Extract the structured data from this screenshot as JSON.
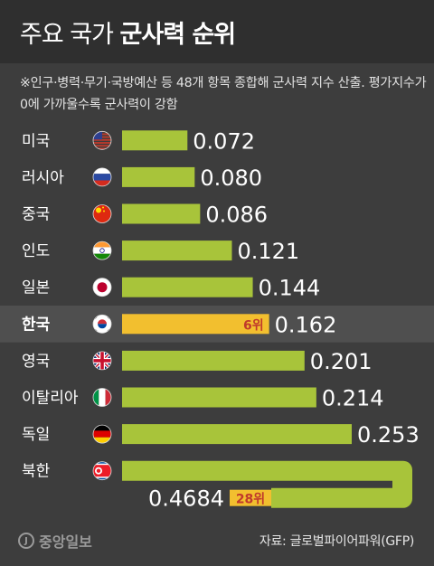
{
  "title": {
    "light": "주요 국가",
    "bold": "군사력 순위"
  },
  "note": "※인구·병력·무기·국방예산 등 48개 항목 종합해 군사력 지수 산출. 평가지수가 0에 가까울수록 군사력이 강함",
  "source": "자료: 글로벌파이어파워(GFP)",
  "logo": "중앙일보",
  "colors": {
    "bar": "#a8c43a",
    "highlight_bar": "#f2bf2f",
    "highlight_row": "#4f4f4f",
    "rank_text": "#c0392b",
    "background": "#3d3d3d"
  },
  "chart_data": {
    "type": "bar",
    "orientation": "horizontal",
    "categories": [
      "미국",
      "러시아",
      "중국",
      "인도",
      "일본",
      "한국",
      "영국",
      "이탈리아",
      "독일",
      "북한"
    ],
    "values": [
      0.072,
      0.08,
      0.086,
      0.121,
      0.144,
      0.162,
      0.201,
      0.214,
      0.253,
      0.4684
    ],
    "value_labels": [
      "0.072",
      "0.080",
      "0.086",
      "0.121",
      "0.144",
      "0.162",
      "0.201",
      "0.214",
      "0.253",
      "0.4684"
    ],
    "flags": [
      "usa-flag-icon",
      "russia-flag-icon",
      "china-flag-icon",
      "india-flag-icon",
      "japan-flag-icon",
      "south-korea-flag-icon",
      "uk-flag-icon",
      "italy-flag-icon",
      "germany-flag-icon",
      "north-korea-flag-icon"
    ],
    "highlight_index": 5,
    "annotations": [
      {
        "category": "한국",
        "text": "6위"
      },
      {
        "category": "북한",
        "text": "28위"
      }
    ],
    "xlim": [
      0,
      0.25
    ]
  }
}
